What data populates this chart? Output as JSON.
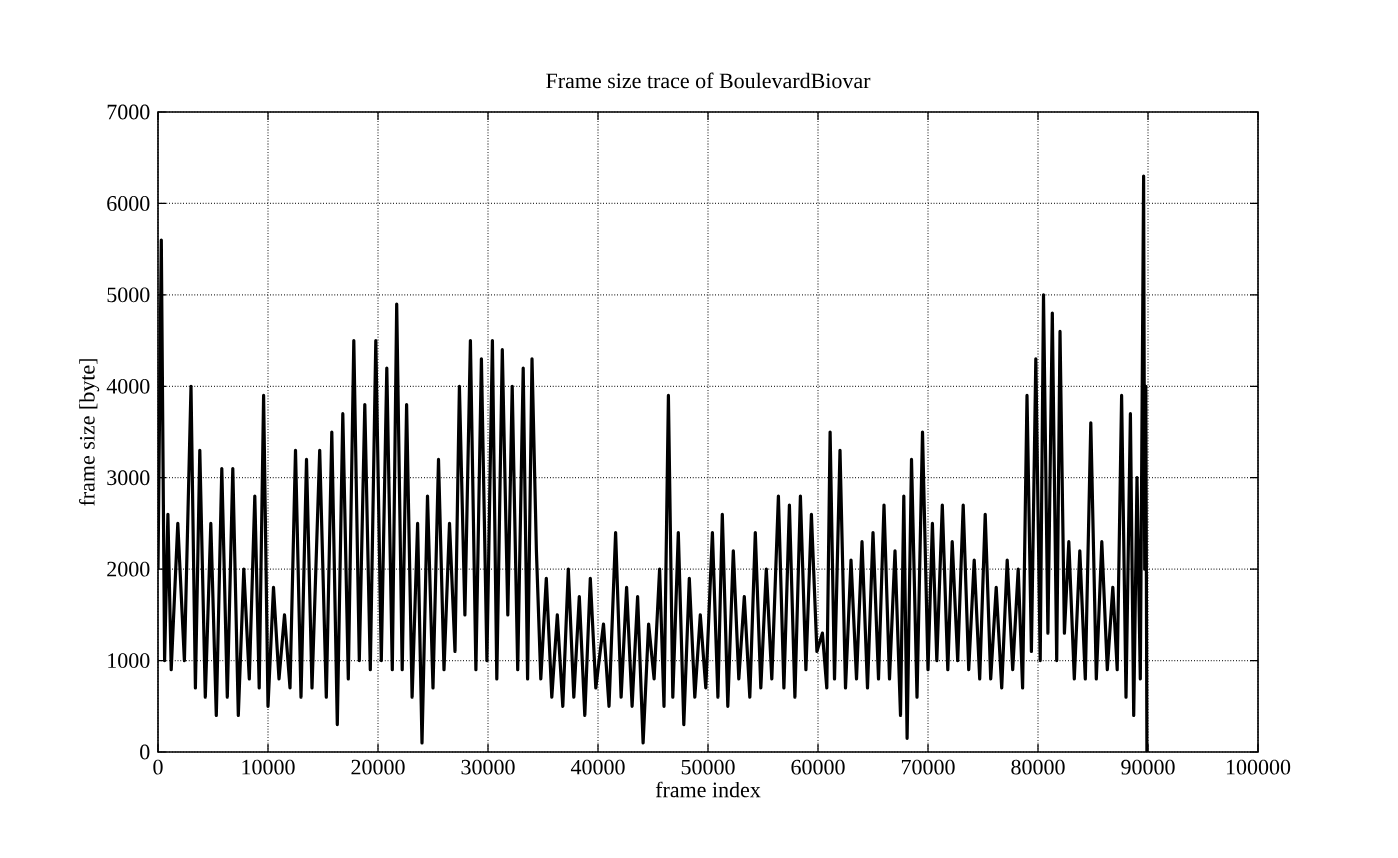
{
  "chart_data": {
    "type": "line",
    "title": "Frame size trace of BoulevardBiovar",
    "xlabel": "frame index",
    "ylabel": "frame size [byte]",
    "x": [
      0,
      300,
      600,
      900,
      1200,
      1800,
      2400,
      3000,
      3400,
      3800,
      4300,
      4800,
      5300,
      5800,
      6300,
      6800,
      7300,
      7800,
      8300,
      8800,
      9200,
      9600,
      10000,
      10500,
      11000,
      11500,
      12000,
      12500,
      13000,
      13500,
      14000,
      14700,
      15300,
      15800,
      16300,
      16800,
      17300,
      17800,
      18300,
      18800,
      19300,
      19800,
      20300,
      20800,
      21300,
      21700,
      22200,
      22600,
      23100,
      23600,
      24000,
      24500,
      25000,
      25500,
      26000,
      26500,
      27000,
      27400,
      27900,
      28400,
      28900,
      29400,
      29900,
      30400,
      30800,
      31300,
      31800,
      32200,
      32700,
      33200,
      33600,
      34000,
      34400,
      34800,
      35300,
      35800,
      36300,
      36800,
      37300,
      37800,
      38300,
      38800,
      39300,
      39800,
      40500,
      41000,
      41600,
      42100,
      42600,
      43100,
      43600,
      44100,
      44600,
      45100,
      45600,
      46000,
      46400,
      46800,
      47300,
      47800,
      48300,
      48800,
      49300,
      49800,
      50400,
      50900,
      51300,
      51800,
      52300,
      52800,
      53300,
      53800,
      54300,
      54800,
      55300,
      55800,
      56400,
      56900,
      57400,
      57900,
      58400,
      58900,
      59400,
      59900,
      60400,
      60800,
      61100,
      61500,
      62000,
      62500,
      63000,
      63500,
      64000,
      64500,
      65000,
      65500,
      66000,
      66500,
      67000,
      67500,
      67800,
      68100,
      68500,
      69000,
      69500,
      70000,
      70400,
      70800,
      71300,
      71800,
      72200,
      72700,
      73200,
      73700,
      74200,
      74700,
      75200,
      75700,
      76200,
      76700,
      77200,
      77700,
      78200,
      78600,
      79000,
      79400,
      79800,
      80200,
      80500,
      80900,
      81300,
      81700,
      82000,
      82400,
      82800,
      83300,
      83800,
      84300,
      84800,
      85300,
      85800,
      86300,
      86800,
      87200,
      87600,
      88000,
      88400,
      88700,
      89000,
      89300,
      89600,
      89700,
      89800,
      89900
    ],
    "values": [
      2000,
      5600,
      1000,
      2600,
      900,
      2500,
      1000,
      4000,
      700,
      3300,
      600,
      2500,
      400,
      3100,
      600,
      3100,
      400,
      2000,
      800,
      2800,
      700,
      3900,
      500,
      1800,
      800,
      1500,
      700,
      3300,
      600,
      3200,
      700,
      3300,
      600,
      3500,
      300,
      3700,
      800,
      4500,
      1000,
      3800,
      900,
      4500,
      1000,
      4200,
      900,
      4900,
      900,
      3800,
      600,
      2500,
      100,
      2800,
      700,
      3200,
      900,
      2500,
      1100,
      4000,
      1500,
      4500,
      900,
      4300,
      1000,
      4500,
      800,
      4400,
      1500,
      4000,
      900,
      4200,
      800,
      4300,
      2200,
      800,
      1900,
      600,
      1500,
      500,
      2000,
      600,
      1700,
      400,
      1900,
      700,
      1400,
      500,
      2400,
      600,
      1800,
      500,
      1700,
      100,
      1400,
      800,
      2000,
      500,
      3900,
      600,
      2400,
      300,
      1900,
      600,
      1500,
      700,
      2400,
      600,
      2600,
      500,
      2200,
      800,
      1700,
      600,
      2400,
      700,
      2000,
      800,
      2800,
      700,
      2700,
      600,
      2800,
      900,
      2600,
      1100,
      1300,
      700,
      3500,
      800,
      3300,
      700,
      2100,
      800,
      2300,
      700,
      2400,
      800,
      2700,
      800,
      2200,
      400,
      2800,
      150,
      3200,
      600,
      3500,
      900,
      2500,
      1000,
      2700,
      900,
      2300,
      1000,
      2700,
      900,
      2100,
      800,
      2600,
      800,
      1800,
      700,
      2100,
      900,
      2000,
      700,
      3900,
      1100,
      4300,
      1000,
      5000,
      1300,
      4800,
      1000,
      4600,
      1300,
      2300,
      800,
      2200,
      800,
      3600,
      800,
      2300,
      900,
      1800,
      900,
      3900,
      600,
      3700,
      400,
      3000,
      800,
      6300,
      2000,
      4000,
      0
    ],
    "color": "#000000",
    "line_style": "solid",
    "xlim": [
      0,
      100000
    ],
    "ylim": [
      0,
      7000
    ],
    "xticks": [
      0,
      10000,
      20000,
      30000,
      40000,
      50000,
      60000,
      70000,
      80000,
      90000,
      100000
    ],
    "yticks": [
      0,
      1000,
      2000,
      3000,
      4000,
      5000,
      6000,
      7000
    ],
    "grid": true
  }
}
